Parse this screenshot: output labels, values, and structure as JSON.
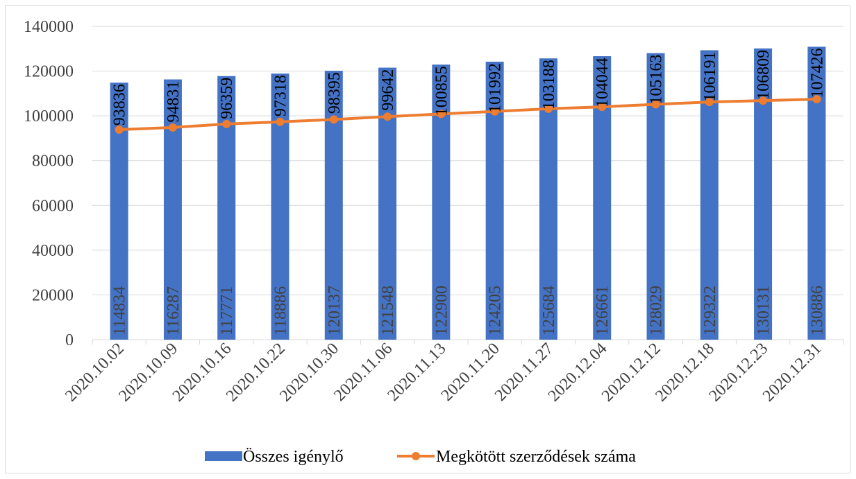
{
  "chart_data": {
    "type": "bar",
    "title": "",
    "xlabel": "",
    "ylabel": "",
    "ylim": [
      0,
      140000
    ],
    "yticks": [
      0,
      20000,
      40000,
      60000,
      80000,
      100000,
      120000,
      140000
    ],
    "grid": true,
    "legend_position": "bottom",
    "categories": [
      "2020.10.02",
      "2020.10.09",
      "2020.10.16",
      "2020.10.22",
      "2020.10.30",
      "2020.11.06",
      "2020.11.13",
      "2020.11.20",
      "2020.11.27",
      "2020.12.04",
      "2020.12.12",
      "2020.12.18",
      "2020.12.23",
      "2020.12.31"
    ],
    "series": [
      {
        "name": "Összes igénylő",
        "type": "bar",
        "color": "#4472C4",
        "values": [
          114834,
          116287,
          117771,
          118886,
          120137,
          121548,
          122900,
          124205,
          125684,
          126661,
          128029,
          129322,
          130131,
          130886
        ]
      },
      {
        "name": "Megkötött szerződések száma",
        "type": "line",
        "color": "#ED7D31",
        "values": [
          93836,
          94831,
          96359,
          97318,
          98395,
          99642,
          100855,
          101992,
          103188,
          104044,
          105163,
          106191,
          106809,
          107426
        ]
      }
    ]
  }
}
